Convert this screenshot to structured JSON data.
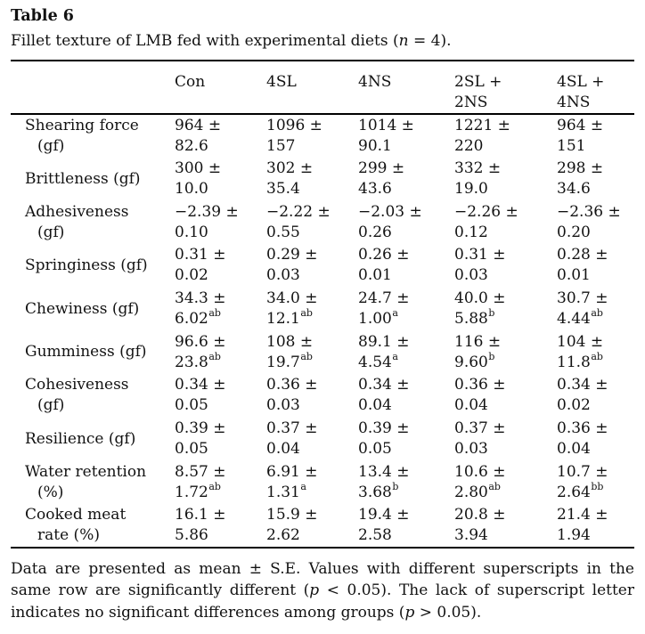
{
  "page": {
    "title": "Table 6",
    "caption_segments": [
      {
        "text": "Fillet texture of LMB fed with experimental diets (",
        "italic": false
      },
      {
        "text": "n",
        "italic": true
      },
      {
        "text": " = 4).",
        "italic": false
      }
    ]
  },
  "table": {
    "header": {
      "row_label": "",
      "columns": [
        {
          "lines": [
            "Con"
          ]
        },
        {
          "lines": [
            "4SL"
          ]
        },
        {
          "lines": [
            "4NS"
          ]
        },
        {
          "lines": [
            "2SL +",
            "2NS"
          ]
        },
        {
          "lines": [
            "4SL +",
            "4NS"
          ]
        }
      ]
    },
    "rows": [
      {
        "label_lines": [
          "Shearing force",
          "(gf)"
        ],
        "cells": [
          {
            "mean": "964 ±",
            "se": "82.6",
            "sup": ""
          },
          {
            "mean": "1096 ±",
            "se": "157",
            "sup": ""
          },
          {
            "mean": "1014 ±",
            "se": "90.1",
            "sup": ""
          },
          {
            "mean": "1221 ±",
            "se": "220",
            "sup": ""
          },
          {
            "mean": "964 ±",
            "se": "151",
            "sup": ""
          }
        ]
      },
      {
        "label_lines": [
          "Brittleness (gf)"
        ],
        "cells": [
          {
            "mean": "300 ±",
            "se": "10.0",
            "sup": ""
          },
          {
            "mean": "302 ±",
            "se": "35.4",
            "sup": ""
          },
          {
            "mean": "299 ±",
            "se": "43.6",
            "sup": ""
          },
          {
            "mean": "332 ±",
            "se": "19.0",
            "sup": ""
          },
          {
            "mean": "298 ±",
            "se": "34.6",
            "sup": ""
          }
        ]
      },
      {
        "label_lines": [
          "Adhesiveness",
          "(gf)"
        ],
        "cells": [
          {
            "mean": "−2.39 ±",
            "se": "0.10",
            "sup": ""
          },
          {
            "mean": "−2.22 ±",
            "se": "0.55",
            "sup": ""
          },
          {
            "mean": "−2.03 ±",
            "se": "0.26",
            "sup": ""
          },
          {
            "mean": "−2.26 ±",
            "se": "0.12",
            "sup": ""
          },
          {
            "mean": "−2.36 ±",
            "se": "0.20",
            "sup": ""
          }
        ]
      },
      {
        "label_lines": [
          "Springiness (gf)"
        ],
        "cells": [
          {
            "mean": "0.31 ±",
            "se": "0.02",
            "sup": ""
          },
          {
            "mean": "0.29 ±",
            "se": "0.03",
            "sup": ""
          },
          {
            "mean": "0.26 ±",
            "se": "0.01",
            "sup": ""
          },
          {
            "mean": "0.31 ±",
            "se": "0.03",
            "sup": ""
          },
          {
            "mean": "0.28 ±",
            "se": "0.01",
            "sup": ""
          }
        ]
      },
      {
        "label_lines": [
          "Chewiness (gf)"
        ],
        "cells": [
          {
            "mean": "34.3 ±",
            "se": "6.02",
            "sup": "ab"
          },
          {
            "mean": "34.0 ±",
            "se": "12.1",
            "sup": "ab"
          },
          {
            "mean": "24.7 ±",
            "se": "1.00",
            "sup": "a"
          },
          {
            "mean": "40.0 ±",
            "se": "5.88",
            "sup": "b"
          },
          {
            "mean": "30.7 ±",
            "se": "4.44",
            "sup": "ab"
          }
        ]
      },
      {
        "label_lines": [
          "Gumminess (gf)"
        ],
        "cells": [
          {
            "mean": "96.6 ±",
            "se": "23.8",
            "sup": "ab"
          },
          {
            "mean": "108 ±",
            "se": "19.7",
            "sup": "ab"
          },
          {
            "mean": "89.1 ±",
            "se": "4.54",
            "sup": "a"
          },
          {
            "mean": "116 ±",
            "se": "9.60",
            "sup": "b"
          },
          {
            "mean": "104 ±",
            "se": "11.8",
            "sup": "ab"
          }
        ]
      },
      {
        "label_lines": [
          "Cohesiveness",
          "(gf)"
        ],
        "cells": [
          {
            "mean": "0.34 ±",
            "se": "0.05",
            "sup": ""
          },
          {
            "mean": "0.36 ±",
            "se": "0.03",
            "sup": ""
          },
          {
            "mean": "0.34 ±",
            "se": "0.04",
            "sup": ""
          },
          {
            "mean": "0.36 ±",
            "se": "0.04",
            "sup": ""
          },
          {
            "mean": "0.34 ±",
            "se": "0.02",
            "sup": ""
          }
        ]
      },
      {
        "label_lines": [
          "Resilience (gf)"
        ],
        "cells": [
          {
            "mean": "0.39 ±",
            "se": "0.05",
            "sup": ""
          },
          {
            "mean": "0.37 ±",
            "se": "0.04",
            "sup": ""
          },
          {
            "mean": "0.39 ±",
            "se": "0.05",
            "sup": ""
          },
          {
            "mean": "0.37 ±",
            "se": "0.03",
            "sup": ""
          },
          {
            "mean": "0.36 ±",
            "se": "0.04",
            "sup": ""
          }
        ]
      },
      {
        "label_lines": [
          "Water retention",
          "(%)"
        ],
        "cells": [
          {
            "mean": "8.57 ±",
            "se": "1.72",
            "sup": "ab"
          },
          {
            "mean": "6.91 ±",
            "se": "1.31",
            "sup": "a"
          },
          {
            "mean": "13.4 ±",
            "se": "3.68",
            "sup": "b"
          },
          {
            "mean": "10.6 ±",
            "se": "2.80",
            "sup": "ab"
          },
          {
            "mean": "10.7 ±",
            "se": "2.64",
            "sup": "bb"
          }
        ]
      },
      {
        "label_lines": [
          "Cooked meat",
          "rate (%)"
        ],
        "cells": [
          {
            "mean": "16.1 ±",
            "se": "5.86",
            "sup": ""
          },
          {
            "mean": "15.9 ±",
            "se": "2.62",
            "sup": ""
          },
          {
            "mean": "19.4 ±",
            "se": "2.58",
            "sup": ""
          },
          {
            "mean": "20.8 ±",
            "se": "3.94",
            "sup": ""
          },
          {
            "mean": "21.4 ±",
            "se": "1.94",
            "sup": ""
          }
        ]
      }
    ]
  },
  "footnote_segments": [
    {
      "text": "Data are presented as mean ± S.E. Values with different superscripts in the same row are significantly different (",
      "italic": false
    },
    {
      "text": "p",
      "italic": true
    },
    {
      "text": " < 0.05). The lack of superscript letter indicates no significant differences among groups (",
      "italic": false
    },
    {
      "text": "p",
      "italic": true
    },
    {
      "text": " > 0.05).",
      "italic": false
    }
  ],
  "colors": {
    "text": "#121212",
    "rule": "#000000",
    "background": "#ffffff"
  }
}
